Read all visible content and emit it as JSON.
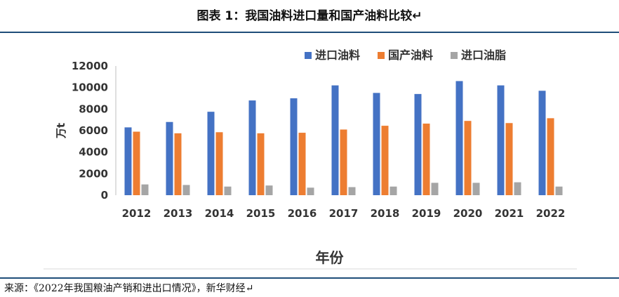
{
  "figure": {
    "title": "图表 1：我国油料进口量和国产油料比较↵",
    "source": "来源：《2022年我国粮油产销和进出口情况》，新华财经↵"
  },
  "chart_data": {
    "type": "bar",
    "categories": [
      "2012",
      "2013",
      "2014",
      "2015",
      "2016",
      "2017",
      "2018",
      "2019",
      "2020",
      "2021",
      "2022"
    ],
    "series": [
      {
        "name": "进口油料",
        "color": "#4472C4",
        "values": [
          6300,
          6800,
          7750,
          8800,
          9000,
          10200,
          9500,
          9400,
          10600,
          10200,
          9700
        ]
      },
      {
        "name": "国产油料",
        "color": "#ED7D31",
        "values": [
          5900,
          5750,
          5850,
          5750,
          5800,
          6100,
          6450,
          6650,
          6900,
          6700,
          7150
        ]
      },
      {
        "name": "进口油脂",
        "color": "#A5A5A5",
        "values": [
          1000,
          950,
          800,
          900,
          700,
          750,
          800,
          1150,
          1150,
          1200,
          800
        ]
      }
    ],
    "xlabel": "年份",
    "ylabel": "万t",
    "yticks": [
      "0",
      "2000",
      "4000",
      "6000",
      "8000",
      "10000",
      "12000"
    ],
    "ylim": [
      0,
      12000
    ],
    "grid": false,
    "legend": "top-right"
  }
}
